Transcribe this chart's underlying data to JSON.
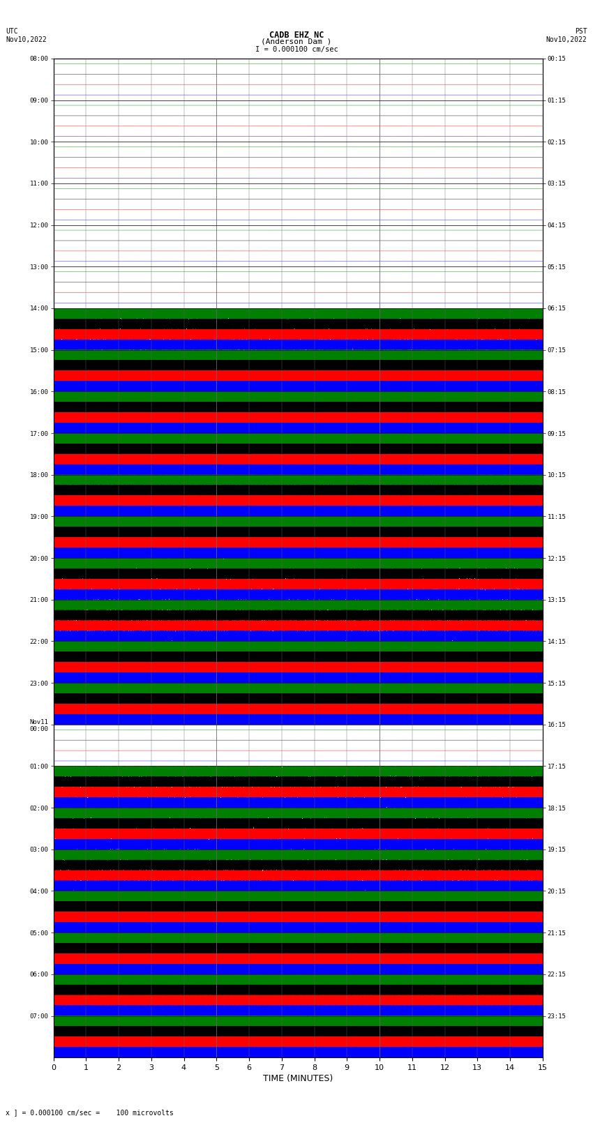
{
  "title_line1": "CADB EHZ NC",
  "title_line2": "(Anderson Dam )",
  "title_line3": "I = 0.000100 cm/sec",
  "left_label_top": "UTC",
  "left_label_date": "Nov10,2022",
  "right_label_top": "PST",
  "right_label_date": "Nov10,2022",
  "bottom_label": "TIME (MINUTES)",
  "footer_text": "x ] = 0.000100 cm/sec =    100 microvolts",
  "xlabel_ticks": [
    0,
    1,
    2,
    3,
    4,
    5,
    6,
    7,
    8,
    9,
    10,
    11,
    12,
    13,
    14,
    15
  ],
  "left_time_labels": [
    "08:00",
    "09:00",
    "10:00",
    "11:00",
    "12:00",
    "13:00",
    "14:00",
    "15:00",
    "16:00",
    "17:00",
    "18:00",
    "19:00",
    "20:00",
    "21:00",
    "22:00",
    "23:00",
    "Nov11\n00:00",
    "01:00",
    "02:00",
    "03:00",
    "04:00",
    "05:00",
    "06:00",
    "07:00"
  ],
  "right_time_labels": [
    "00:15",
    "01:15",
    "02:15",
    "03:15",
    "04:15",
    "05:15",
    "06:15",
    "07:15",
    "08:15",
    "09:15",
    "10:15",
    "11:15",
    "12:15",
    "13:15",
    "14:15",
    "15:15",
    "16:15",
    "17:15",
    "18:15",
    "19:15",
    "20:15",
    "21:15",
    "22:15",
    "23:15"
  ],
  "n_rows": 24,
  "minutes_per_row": 15,
  "trace_order": [
    "green",
    "black",
    "red",
    "blue"
  ],
  "background_color": "white",
  "fig_width": 8.5,
  "fig_height": 16.13,
  "row_activity": [
    0,
    0,
    0,
    0,
    0,
    0,
    1,
    3,
    3,
    3,
    3,
    2,
    1,
    1,
    3,
    3,
    0,
    1,
    1,
    1,
    3,
    3,
    3,
    3
  ],
  "note_rows_quiet_after": 16
}
